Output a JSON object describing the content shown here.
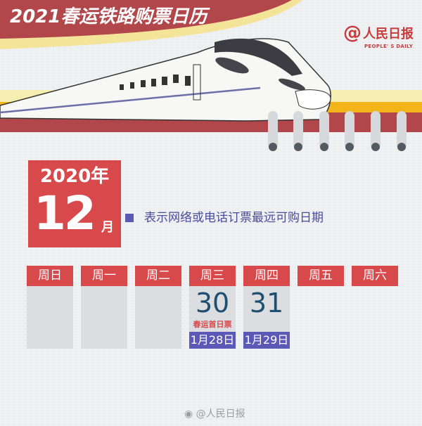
{
  "header": {
    "title": "2021春运铁路购票日历",
    "logo_name": "人民日报",
    "logo_en": "PEOPLE' S DAILY"
  },
  "calendar": {
    "year": "2020年",
    "month": "12",
    "month_unit": "月",
    "legend": "表示网络或电话订票最远可购日期",
    "weekdays": [
      "周日",
      "周一",
      "周二",
      "周三",
      "周四",
      "周五",
      "周六"
    ],
    "days": [
      {
        "date": "30",
        "note": "春运首日票",
        "purchase_date": "1月28日"
      },
      {
        "date": "31",
        "purchase_date": "1月29日"
      }
    ]
  },
  "colors": {
    "red": "#d8494b",
    "purple": "#5b58b6",
    "banner": "#b2474b",
    "yellow": "#f4e49a"
  },
  "watermark": "@人民日报"
}
